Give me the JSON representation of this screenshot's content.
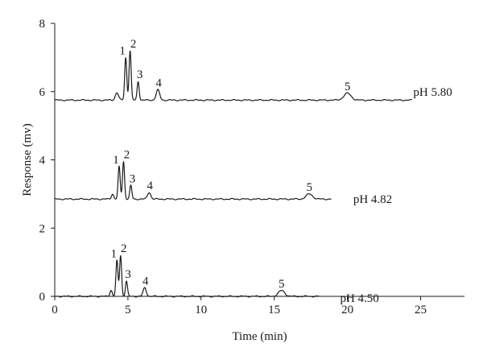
{
  "chart_data": {
    "type": "line",
    "xlabel": "Time (min)",
    "ylabel": "Response (mv)",
    "xlim": [
      0,
      28
    ],
    "ylim": [
      0,
      8
    ],
    "xticks": [
      0,
      5,
      10,
      15,
      20,
      25
    ],
    "yticks": [
      0,
      2,
      4,
      6,
      8
    ],
    "grid": false,
    "series": [
      {
        "name": "pH 5.80",
        "baseline": 5.75,
        "x_end": 24.4,
        "label_at": [
          24.5,
          6.0
        ],
        "peaks": [
          {
            "label": "",
            "t": 4.25,
            "height": 0.22,
            "width": 0.11
          },
          {
            "label": "1",
            "t": 4.85,
            "height": 1.25,
            "width": 0.07
          },
          {
            "label": "2",
            "t": 5.15,
            "height": 1.45,
            "width": 0.07
          },
          {
            "label": "3",
            "t": 5.7,
            "height": 0.55,
            "width": 0.07
          },
          {
            "label": "4",
            "t": 7.05,
            "height": 0.3,
            "width": 0.12
          },
          {
            "label": "5",
            "t": 20.0,
            "height": 0.2,
            "width": 0.25
          }
        ]
      },
      {
        "name": "pH 4.82",
        "baseline": 2.85,
        "x_end": 18.9,
        "label_at": [
          20.4,
          2.85
        ],
        "peaks": [
          {
            "label": "",
            "t": 3.95,
            "height": 0.15,
            "width": 0.08
          },
          {
            "label": "1",
            "t": 4.4,
            "height": 0.95,
            "width": 0.07
          },
          {
            "label": "2",
            "t": 4.7,
            "height": 1.1,
            "width": 0.07
          },
          {
            "label": "3",
            "t": 5.2,
            "height": 0.4,
            "width": 0.07
          },
          {
            "label": "4",
            "t": 6.45,
            "height": 0.2,
            "width": 0.11
          },
          {
            "label": "5",
            "t": 17.4,
            "height": 0.15,
            "width": 0.22
          }
        ]
      },
      {
        "name": "pH 4.50",
        "baseline": 0.0,
        "x_end": 18.1,
        "label_at": [
          19.5,
          -0.05
        ],
        "peaks": [
          {
            "label": "",
            "t": 3.85,
            "height": 0.18,
            "width": 0.08
          },
          {
            "label": "1",
            "t": 4.25,
            "height": 1.05,
            "width": 0.07
          },
          {
            "label": "2",
            "t": 4.5,
            "height": 1.2,
            "width": 0.07
          },
          {
            "label": "3",
            "t": 4.9,
            "height": 0.45,
            "width": 0.07
          },
          {
            "label": "4",
            "t": 6.15,
            "height": 0.25,
            "width": 0.11
          },
          {
            "label": "5",
            "t": 15.5,
            "height": 0.17,
            "width": 0.22
          }
        ]
      }
    ]
  }
}
